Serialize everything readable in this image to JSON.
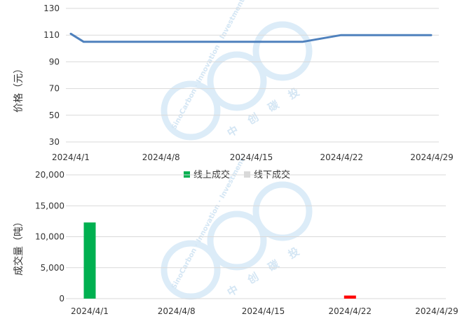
{
  "chart_data": [
    {
      "type": "line",
      "ylabel": "价格（元）",
      "ylim": [
        30,
        130
      ],
      "yticks": [
        "30",
        "50",
        "70",
        "90",
        "110",
        "130"
      ],
      "xlim": [
        "2024-04-01",
        "2024-04-29"
      ],
      "xticks": [
        "2024/4/1",
        "2024/4/8",
        "2024/4/15",
        "2024/4/22",
        "2024/4/29"
      ],
      "grid": true,
      "color": "#4f81bd",
      "points": [
        {
          "x": "2024-04-01",
          "y": 111
        },
        {
          "x": "2024-04-02",
          "y": 105
        },
        {
          "x": "2024-04-19",
          "y": 105
        },
        {
          "x": "2024-04-22",
          "y": 110
        },
        {
          "x": "2024-04-29",
          "y": 110
        }
      ]
    },
    {
      "type": "bar",
      "ylabel": "成交量（吨）",
      "ylim": [
        0,
        20000
      ],
      "yticks": [
        "0",
        "5,000",
        "10,000",
        "15,000",
        "20,000"
      ],
      "xlim": [
        "2024-04-01",
        "2024-04-29"
      ],
      "xticks": [
        "2024/4/1",
        "2024/4/8",
        "2024/4/15",
        "2024/4/22",
        "2024/4/29"
      ],
      "grid": true,
      "legend_position": "top-center",
      "series": [
        {
          "name": "线上成交",
          "color": "#00b050",
          "points": [
            {
              "x": "2024-04-01",
              "y": 12300
            }
          ]
        },
        {
          "name": "线下成交",
          "color": "#d9d9d9",
          "points": []
        },
        {
          "color": "#ff0000",
          "points": [
            {
              "x": "2024-04-22",
              "y": 500
            }
          ]
        }
      ]
    }
  ],
  "watermark": {
    "latin": "SinoCarbon · Innovation · Investment",
    "cn": [
      "中",
      "创",
      "碳",
      "投"
    ],
    "color": "#dcecf8"
  }
}
